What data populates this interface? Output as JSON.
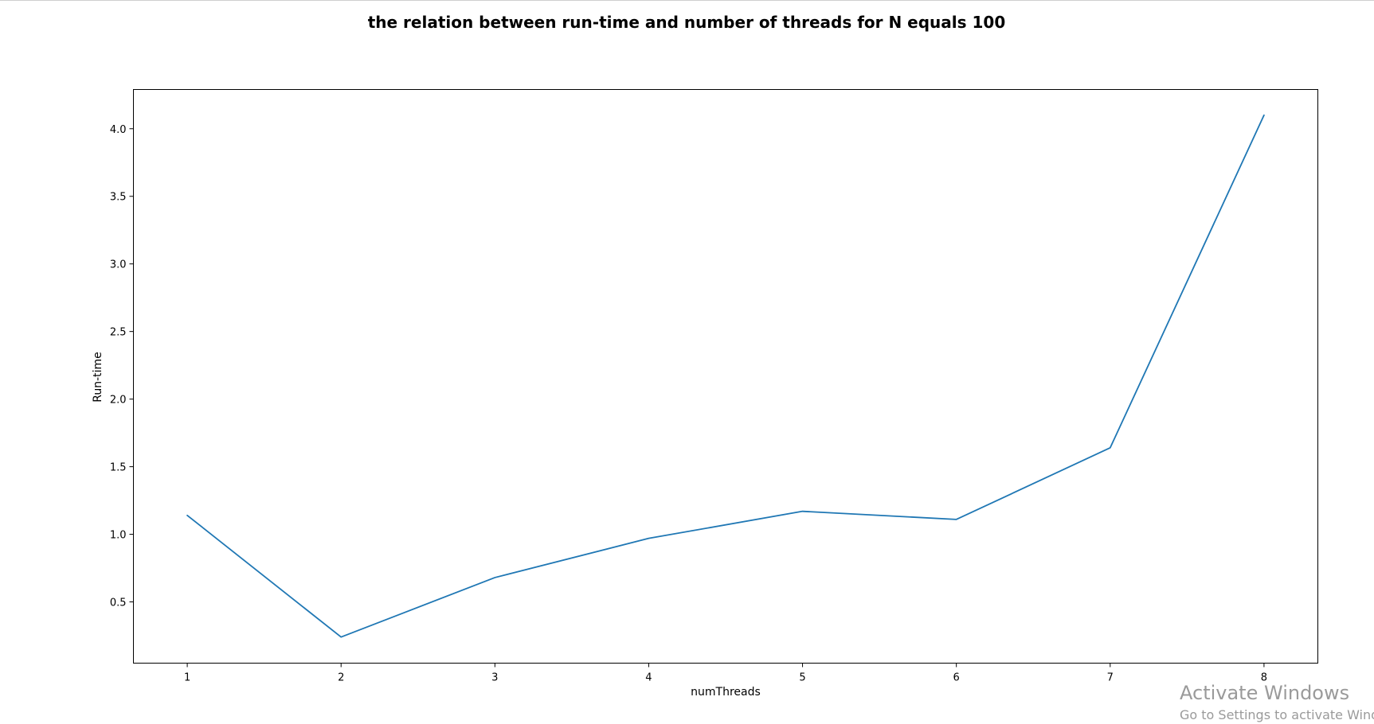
{
  "chart_data": {
    "type": "line",
    "title": "the relation between run-time and number of threads for N equals 100",
    "xlabel": "numThreads",
    "ylabel": "Run-time",
    "x": [
      1,
      2,
      3,
      4,
      5,
      6,
      7,
      8
    ],
    "series": [
      {
        "values": [
          1.14,
          0.24,
          0.68,
          0.97,
          1.17,
          1.11,
          1.64,
          4.1
        ],
        "color": "#1f77b4"
      }
    ],
    "xticks": [
      "1",
      "2",
      "3",
      "4",
      "5",
      "6",
      "7",
      "8"
    ],
    "yticks": [
      "0.5",
      "1.0",
      "1.5",
      "2.0",
      "2.5",
      "3.0",
      "3.5",
      "4.0"
    ],
    "xlim": [
      0.65,
      8.35
    ],
    "ylim": [
      0.047,
      4.29
    ],
    "grid": false,
    "legend": "none"
  },
  "watermark": {
    "title": "Activate Windows",
    "subtitle": "Go to Settings to activate Windows."
  }
}
